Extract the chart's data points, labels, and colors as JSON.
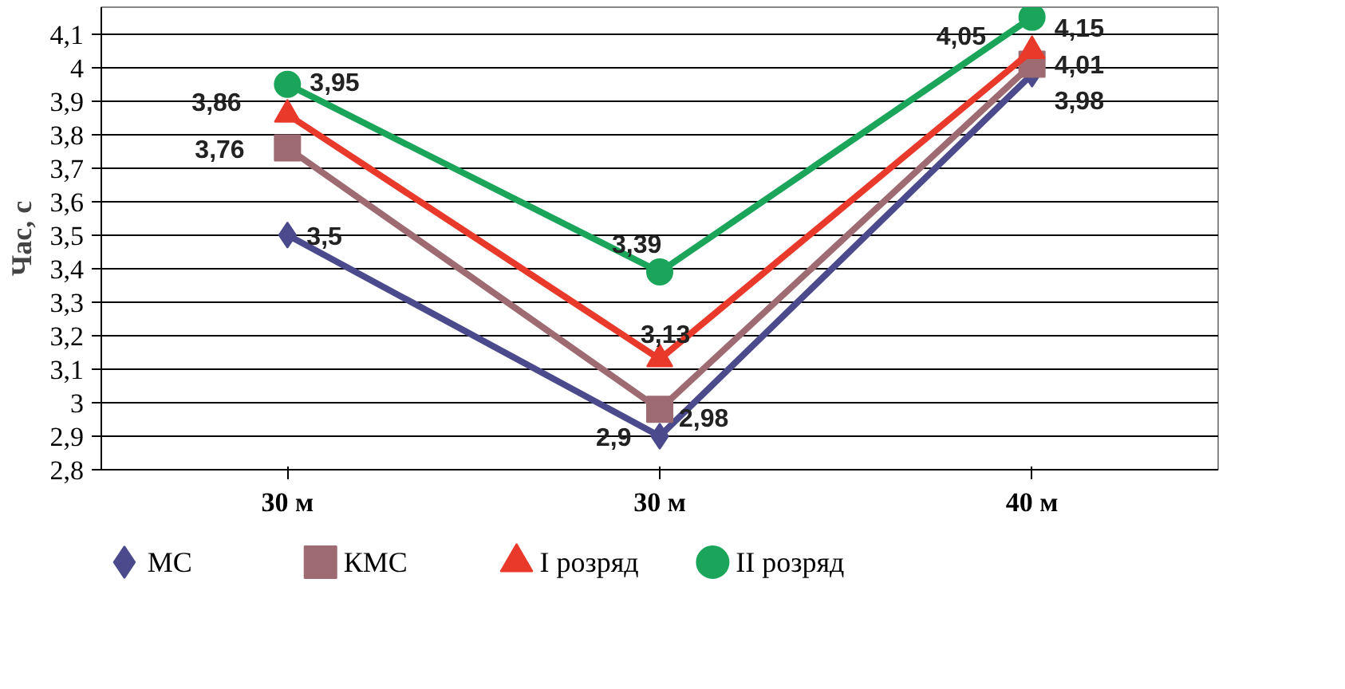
{
  "chart_data": {
    "type": "line",
    "ylabel": "Час, с",
    "categories": [
      "30 м",
      "30 м",
      "40 м"
    ],
    "series": [
      {
        "name": "МС",
        "color": "#4b4a8c",
        "marker": "diamond",
        "values": [
          3.5,
          2.9,
          3.98
        ],
        "value_labels": [
          "3,5",
          "2,9",
          "3,98"
        ]
      },
      {
        "name": "КМС",
        "color": "#9e6b73",
        "marker": "square",
        "values": [
          3.76,
          2.98,
          4.01
        ],
        "value_labels": [
          "3,76",
          "2,98",
          "4,01"
        ]
      },
      {
        "name": "I розряд",
        "color": "#e8392a",
        "marker": "triangle",
        "values": [
          3.86,
          3.13,
          4.05
        ],
        "value_labels": [
          "3,86",
          "3,13",
          "4,05"
        ]
      },
      {
        "name": "II розряд",
        "color": "#1aa55a",
        "marker": "circle",
        "values": [
          3.95,
          3.39,
          4.15
        ],
        "value_labels": [
          "3,95",
          "3,39",
          "4,15"
        ]
      }
    ],
    "ylim": [
      2.8,
      4.18
    ],
    "yticks": [
      {
        "value": 2.8,
        "label": "2,8"
      },
      {
        "value": 2.9,
        "label": "2,9"
      },
      {
        "value": 3,
        "label": "3"
      },
      {
        "value": 3.1,
        "label": "3,1"
      },
      {
        "value": 3.2,
        "label": "3,2"
      },
      {
        "value": 3.3,
        "label": "3,3"
      },
      {
        "value": 3.4,
        "label": "3,4"
      },
      {
        "value": 3.5,
        "label": "3,5"
      },
      {
        "value": 3.6,
        "label": "3,6"
      },
      {
        "value": 3.7,
        "label": "3,7"
      },
      {
        "value": 3.8,
        "label": "3,8"
      },
      {
        "value": 3.9,
        "label": "3,9"
      },
      {
        "value": 4,
        "label": "4"
      },
      {
        "value": 4.1,
        "label": "4,1"
      }
    ],
    "grid": "y",
    "legend": "bottom"
  }
}
